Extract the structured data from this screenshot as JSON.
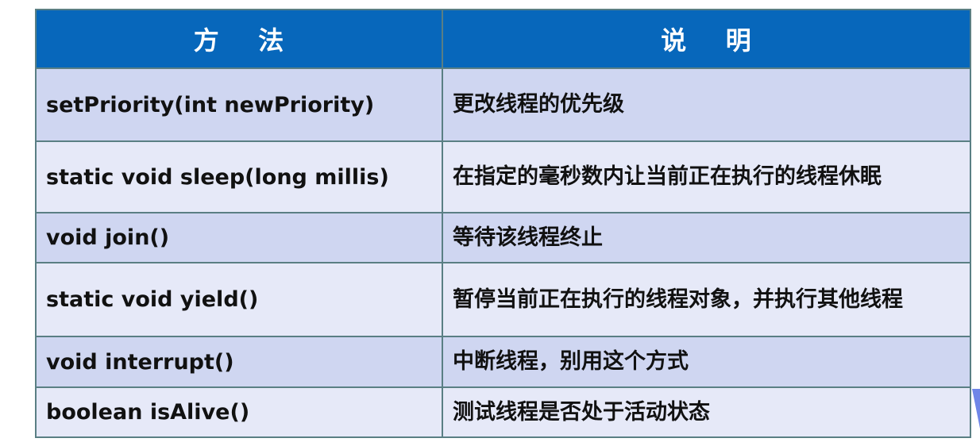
{
  "header": {
    "method": "方    法",
    "description": "说    明"
  },
  "rows": [
    {
      "method": "setPriority(int  newPriority)",
      "description": "更改线程的优先级"
    },
    {
      "method": "static void sleep(long millis)",
      "description": "在指定的毫秒数内让当前正在执行的线程休眠"
    },
    {
      "method": "void join()",
      "description": "等待该线程终止"
    },
    {
      "method": "static void yield()",
      "description": "暂停当前正在执行的线程对象，并执行其他线程"
    },
    {
      "method": "void interrupt()",
      "description": "中断线程，别用这个方式"
    },
    {
      "method": "boolean isAlive()",
      "description": "测试线程是否处于活动状态"
    }
  ],
  "colors": {
    "header": "#0767bb",
    "row_odd": "#cfd6f1",
    "row_even": "#e6e9f8",
    "border": "#5a7f84"
  }
}
